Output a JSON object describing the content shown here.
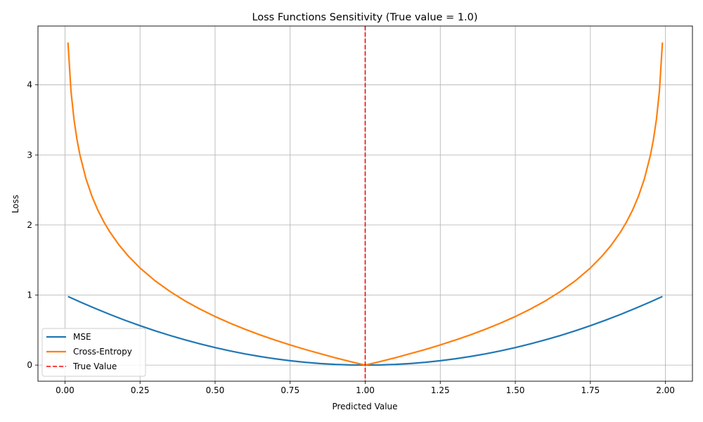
{
  "chart_data": {
    "type": "line",
    "title": "Loss Functions Sensitivity (True value = 1.0)",
    "xlabel": "Predicted Value",
    "ylabel": "Loss",
    "xlim": [
      -0.09,
      2.09
    ],
    "ylim": [
      -0.23,
      4.84
    ],
    "xticks": [
      0.0,
      0.25,
      0.5,
      0.75,
      1.0,
      1.25,
      1.5,
      1.75,
      2.0
    ],
    "xtick_labels": [
      "0.00",
      "0.25",
      "0.50",
      "0.75",
      "1.00",
      "1.25",
      "1.50",
      "1.75",
      "2.00"
    ],
    "yticks": [
      0,
      1,
      2,
      3,
      4
    ],
    "ytick_labels": [
      "0",
      "1",
      "2",
      "3",
      "4"
    ],
    "grid": true,
    "legend_position": "bottom-left",
    "series": [
      {
        "name": "MSE",
        "color": "#1f77b4",
        "style": "solid",
        "x": [
          0.01,
          0.05,
          0.1,
          0.15,
          0.2,
          0.25,
          0.3,
          0.35,
          0.4,
          0.45,
          0.5,
          0.55,
          0.6,
          0.65,
          0.7,
          0.75,
          0.8,
          0.85,
          0.9,
          0.95,
          1.0,
          1.05,
          1.1,
          1.15,
          1.2,
          1.25,
          1.3,
          1.35,
          1.4,
          1.45,
          1.5,
          1.55,
          1.6,
          1.65,
          1.7,
          1.75,
          1.8,
          1.85,
          1.9,
          1.95,
          1.99
        ],
        "y": [
          0.98,
          0.9025,
          0.81,
          0.7225,
          0.64,
          0.5625,
          0.49,
          0.4225,
          0.36,
          0.3025,
          0.25,
          0.2025,
          0.16,
          0.1225,
          0.09,
          0.0625,
          0.04,
          0.0225,
          0.01,
          0.0025,
          0.0,
          0.0025,
          0.01,
          0.0225,
          0.04,
          0.0625,
          0.09,
          0.1225,
          0.16,
          0.2025,
          0.25,
          0.3025,
          0.36,
          0.4225,
          0.49,
          0.5625,
          0.64,
          0.7225,
          0.81,
          0.9025,
          0.98
        ]
      },
      {
        "name": "Cross-Entropy",
        "color": "#ff7f0e",
        "style": "solid",
        "x": [
          0.01,
          0.02,
          0.03,
          0.04,
          0.05,
          0.07,
          0.09,
          0.11,
          0.13,
          0.15,
          0.18,
          0.21,
          0.25,
          0.3,
          0.35,
          0.4,
          0.45,
          0.5,
          0.55,
          0.6,
          0.65,
          0.7,
          0.75,
          0.8,
          0.85,
          0.9,
          0.95,
          1.0,
          1.05,
          1.1,
          1.15,
          1.2,
          1.25,
          1.3,
          1.35,
          1.4,
          1.45,
          1.5,
          1.55,
          1.6,
          1.65,
          1.7,
          1.75,
          1.79,
          1.82,
          1.85,
          1.87,
          1.89,
          1.91,
          1.93,
          1.95,
          1.96,
          1.97,
          1.98,
          1.99
        ],
        "y": [
          4.605,
          3.912,
          3.507,
          3.219,
          2.996,
          2.659,
          2.408,
          2.207,
          2.04,
          1.897,
          1.715,
          1.561,
          1.386,
          1.204,
          1.05,
          0.916,
          0.799,
          0.693,
          0.598,
          0.511,
          0.431,
          0.357,
          0.288,
          0.223,
          0.163,
          0.105,
          0.051,
          0.0,
          0.051,
          0.105,
          0.163,
          0.223,
          0.288,
          0.357,
          0.431,
          0.511,
          0.598,
          0.693,
          0.799,
          0.916,
          1.05,
          1.204,
          1.386,
          1.561,
          1.715,
          1.897,
          2.04,
          2.207,
          2.408,
          2.659,
          2.996,
          3.219,
          3.507,
          3.912,
          4.605
        ]
      },
      {
        "name": "True Value",
        "color": "#ff0000",
        "style": "dashed",
        "vline_x": 1.0
      }
    ]
  }
}
